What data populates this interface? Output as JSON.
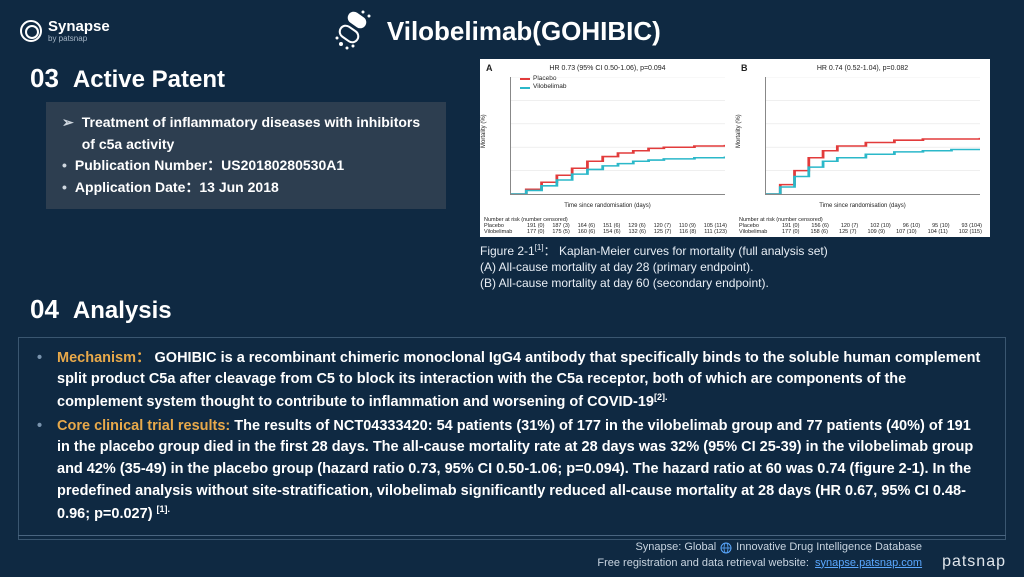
{
  "brand": {
    "name": "Synapse",
    "sub": "by patsnap"
  },
  "title": "Vilobelimab(GOHIBIC)",
  "sections": {
    "patent": {
      "num": "03",
      "name": "Active Patent",
      "claim": "Treatment of inflammatory diseases with inhibitors of c5a  activity",
      "pub_label": "Publication Number：",
      "pub_value": "US20180280530A1",
      "app_label": "Application Date：",
      "app_value": "13 Jun 2018"
    },
    "analysis": {
      "num": "04",
      "name": "Analysis",
      "mechanism_key": "Mechanism：",
      "mechanism_body": "GOHIBIC is a recombinant chimeric monoclonal IgG4 antibody that specifically binds to the soluble human complement split product C5a after cleavage from C5 to block its interaction with the C5a receptor, both of which are components of the complement system thought to contribute to inflammation and worsening of COVID-19",
      "mechanism_ref": "[2].",
      "core_key": "Core clinical trial results:",
      "core_body": " The results of NCT04333420: 54 patients (31%) of 177 in the vilobelimab group and 77 patients (40%) of 191 in the placebo group died in the first 28 days. The all-cause mortality rate at 28 days was 32% (95% CI 25-39) in the vilobelimab group and 42% (35-49) in the placebo group (hazard ratio 0.73, 95% CI 0.50-1.06; p=0.094). The hazard ratio at 60 was 0.74 (figure 2-1). In the predefined analysis without site-stratification, vilobelimab significantly reduced all-cause mortality at 28 days (HR 0.67, 95% CI 0.48-0.96; p=0.027) ",
      "core_ref": "[1]."
    }
  },
  "figure": {
    "caption_title": "Figure 2-1",
    "caption_ref": "[1]",
    "caption_sep": "：",
    "caption_body": "Kaplan-Meier curves for mortality (full analysis set)",
    "caption_a": "(A) All-cause mortality at day 28 (primary endpoint).",
    "caption_b": "(B) All-cause mortality at day 60 (secondary endpoint).",
    "common": {
      "ylabel": "Mortality (%)",
      "y_range": [
        0,
        100
      ],
      "grid_color": "#e6e6e6",
      "placebo_color": "#e23b3b",
      "vilo_color": "#2bb8c9",
      "legend_placebo": "Placebo",
      "legend_vilo": "Vilobelimab",
      "risk_header": "Number at risk (number censored)",
      "risk_placebo_label": "Placebo",
      "risk_vilo_label": "Vilobelimab"
    },
    "panelA": {
      "label": "A",
      "hr": "HR 0.73 (95% CI 0.50-1.06), p=0.094",
      "xlabel": "Time since randomisation (days)",
      "x_range": [
        0,
        28
      ],
      "x_ticks": [
        0,
        4,
        8,
        12,
        16,
        20,
        24,
        28
      ],
      "placebo_curve": [
        [
          0,
          0
        ],
        [
          2,
          4
        ],
        [
          4,
          10
        ],
        [
          6,
          16
        ],
        [
          8,
          22
        ],
        [
          10,
          28
        ],
        [
          12,
          32
        ],
        [
          14,
          35
        ],
        [
          16,
          37
        ],
        [
          18,
          39
        ],
        [
          20,
          40
        ],
        [
          24,
          41
        ],
        [
          28,
          42
        ]
      ],
      "vilo_curve": [
        [
          0,
          0
        ],
        [
          2,
          3
        ],
        [
          4,
          7
        ],
        [
          6,
          12
        ],
        [
          8,
          17
        ],
        [
          10,
          21
        ],
        [
          12,
          24
        ],
        [
          14,
          26
        ],
        [
          16,
          28
        ],
        [
          18,
          29
        ],
        [
          20,
          30
        ],
        [
          24,
          31
        ],
        [
          28,
          32
        ]
      ],
      "risk_placebo": [
        "191 (0)",
        "187 (3)",
        "164 (6)",
        "151 (6)",
        "129 (6)",
        "120 (7)",
        "110 (9)",
        "105 (114)"
      ],
      "risk_vilo": [
        "177 (0)",
        "175 (5)",
        "160 (6)",
        "154 (6)",
        "132 (6)",
        "125 (7)",
        "116 (8)",
        "111 (123)"
      ]
    },
    "panelB": {
      "label": "B",
      "hr": "HR 0.74 (0.52-1.04), p=0.082",
      "xlabel": "Time since randomisation (days)",
      "x_range": [
        0,
        60
      ],
      "x_ticks": [
        0,
        10,
        20,
        30,
        40,
        50,
        60
      ],
      "placebo_curve": [
        [
          0,
          0
        ],
        [
          4,
          8
        ],
        [
          8,
          20
        ],
        [
          12,
          31
        ],
        [
          16,
          37
        ],
        [
          20,
          41
        ],
        [
          28,
          44
        ],
        [
          36,
          46
        ],
        [
          44,
          47
        ],
        [
          52,
          47
        ],
        [
          60,
          48
        ]
      ],
      "vilo_curve": [
        [
          0,
          0
        ],
        [
          4,
          6
        ],
        [
          8,
          15
        ],
        [
          12,
          23
        ],
        [
          16,
          28
        ],
        [
          20,
          31
        ],
        [
          28,
          34
        ],
        [
          36,
          36
        ],
        [
          44,
          37
        ],
        [
          52,
          38
        ],
        [
          60,
          38
        ]
      ],
      "risk_placebo": [
        "191 (0)",
        "156 (6)",
        "120 (7)",
        "102 (10)",
        "96 (10)",
        "95 (10)",
        "93 (104)"
      ],
      "risk_vilo": [
        "177 (0)",
        "158 (6)",
        "125 (7)",
        "109 (9)",
        "107 (10)",
        "104 (11)",
        "102 (115)"
      ]
    }
  },
  "footer": {
    "line1_pre": "Synapse: Global",
    "line1_post": "Innovative Drug Intelligence Database",
    "line2_pre": "Free registration and data retrieval website:",
    "link": "synapse.patsnap.com",
    "brand": "patsnap"
  }
}
